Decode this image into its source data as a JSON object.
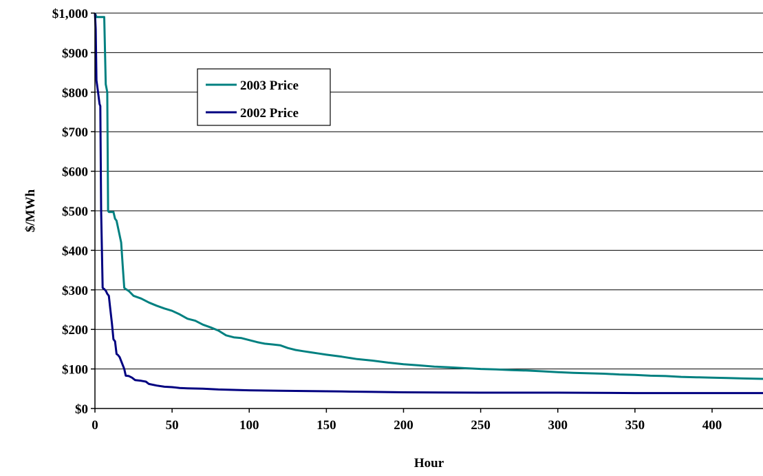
{
  "chart_data": {
    "type": "line",
    "title": "",
    "xlabel": "Hour",
    "ylabel": "$/MWh",
    "xlim": [
      0,
      433
    ],
    "ylim": [
      0,
      1000
    ],
    "x_ticks": [
      0,
      50,
      100,
      150,
      200,
      250,
      300,
      350,
      400
    ],
    "x_tick_labels": [
      "0",
      "50",
      "100",
      "150",
      "200",
      "250",
      "300",
      "350",
      "400"
    ],
    "y_ticks": [
      0,
      100,
      200,
      300,
      400,
      500,
      600,
      700,
      800,
      900,
      1000
    ],
    "y_tick_labels": [
      "$0",
      "$100",
      "$200",
      "$300",
      "$400",
      "$500",
      "$600",
      "$700",
      "$800",
      "$900",
      "$1,000"
    ],
    "grid": "horizontal",
    "legend_position": "upper-left inside plot",
    "series": [
      {
        "name": "2003 Price",
        "color": "#008080",
        "x": [
          0,
          1,
          6,
          7,
          8,
          8.5,
          9,
          12,
          13,
          14,
          17,
          18,
          19,
          20,
          22,
          25,
          30,
          35,
          40,
          45,
          50,
          55,
          60,
          65,
          70,
          75,
          80,
          85,
          90,
          95,
          100,
          105,
          110,
          115,
          120,
          125,
          130,
          135,
          140,
          145,
          150,
          160,
          170,
          180,
          190,
          200,
          210,
          220,
          230,
          240,
          250,
          260,
          270,
          280,
          290,
          300,
          310,
          320,
          330,
          340,
          350,
          360,
          370,
          380,
          390,
          400,
          410,
          420,
          433
        ],
        "values": [
          1000,
          990,
          990,
          820,
          800,
          500,
          497,
          497,
          480,
          475,
          420,
          360,
          305,
          302,
          297,
          285,
          278,
          268,
          260,
          253,
          247,
          238,
          227,
          222,
          212,
          205,
          197,
          185,
          180,
          178,
          173,
          168,
          164,
          162,
          160,
          153,
          148,
          145,
          142,
          139,
          136,
          131,
          125,
          121,
          116,
          112,
          109,
          106,
          104,
          102,
          100,
          99,
          97,
          96,
          94,
          92,
          90,
          89,
          88,
          86,
          85,
          83,
          82,
          80,
          79,
          78,
          77,
          76,
          75
        ]
      },
      {
        "name": "2002 Price",
        "color": "#000080",
        "x": [
          0,
          0.5,
          1,
          2,
          3,
          3.5,
          4,
          5,
          6,
          7,
          8,
          9,
          10,
          11,
          12,
          13,
          14,
          15,
          16,
          17,
          18,
          19,
          20,
          22,
          24,
          26,
          30,
          33,
          35,
          40,
          45,
          50,
          55,
          60,
          70,
          80,
          90,
          100,
          120,
          140,
          160,
          180,
          200,
          250,
          300,
          350,
          400,
          433
        ],
        "values": [
          1000,
          960,
          830,
          800,
          770,
          765,
          500,
          305,
          302,
          298,
          290,
          285,
          250,
          215,
          175,
          170,
          138,
          135,
          130,
          120,
          110,
          100,
          83,
          82,
          78,
          72,
          70,
          68,
          62,
          58,
          55,
          54,
          52,
          51,
          50,
          48,
          47,
          46,
          45,
          44,
          43,
          42,
          41,
          40,
          40,
          39,
          39,
          39
        ]
      }
    ]
  }
}
